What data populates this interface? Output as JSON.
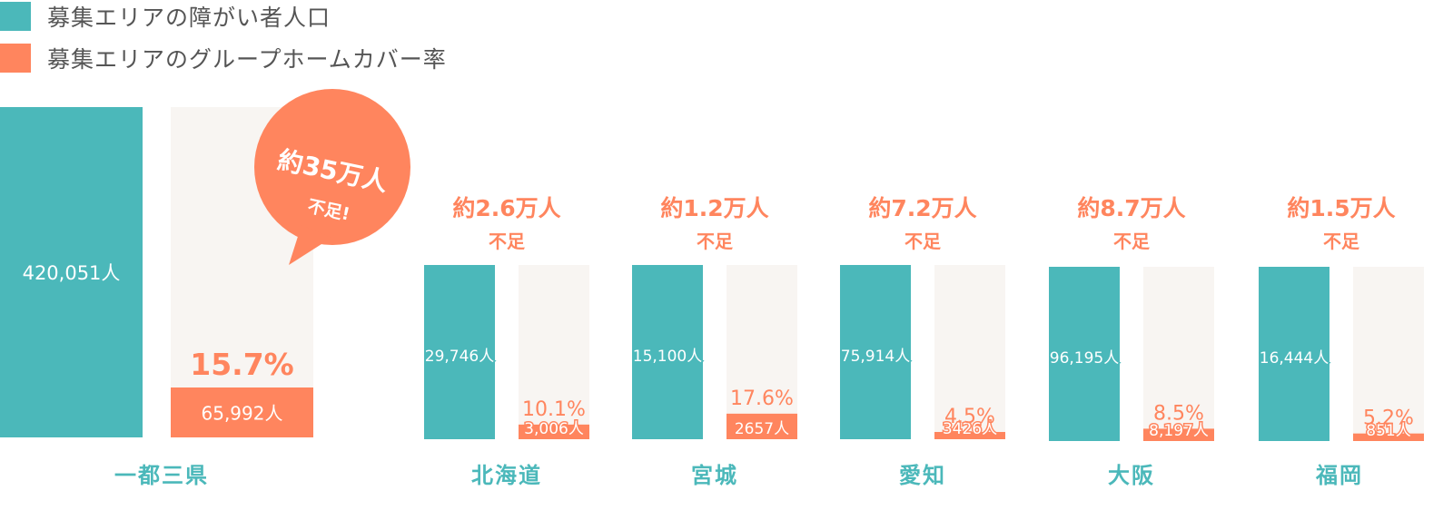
{
  "colors": {
    "population": "#4bb8ba",
    "coverage": "#ff855e",
    "background_bar": "#f8f5f2",
    "label_text": "#555555"
  },
  "chart_data": {
    "type": "bar",
    "legend": [
      {
        "key": "population",
        "label": "募集エリアの障がい者人口"
      },
      {
        "key": "coverage",
        "label": "募集エリアのグループホームカバー率"
      }
    ],
    "categories": [
      "一都三県",
      "北海道",
      "宮城",
      "愛知",
      "大阪",
      "福岡"
    ],
    "series": [
      {
        "key": "population",
        "name": "募集エリアの障がい者人口",
        "value_labels": [
          "420,051人",
          "29,746人",
          "15,100人",
          "75,914人",
          "96,195人",
          "16,444人"
        ]
      },
      {
        "key": "coverage",
        "name": "募集エリアのグループホームカバー率",
        "values": [
          15.7,
          10.1,
          17.6,
          4.5,
          8.5,
          5.2
        ],
        "percent_labels": [
          "15.7%",
          "10.1%",
          "17.6%",
          "4.5%",
          "8.5%",
          "5.2%"
        ],
        "value_labels": [
          "65,992人",
          "3,006人",
          "2657人",
          "3426人",
          "8,197人",
          "851人"
        ]
      }
    ],
    "shortage": [
      {
        "line1": "約35万人",
        "line2": "不足!"
      },
      {
        "line1": "約2.6万人",
        "line2": "不足"
      },
      {
        "line1": "約1.2万人",
        "line2": "不足"
      },
      {
        "line1": "約7.2万人",
        "line2": "不足"
      },
      {
        "line1": "約8.7万人",
        "line2": "不足"
      },
      {
        "line1": "約1.5万人",
        "line2": "不足"
      }
    ]
  }
}
